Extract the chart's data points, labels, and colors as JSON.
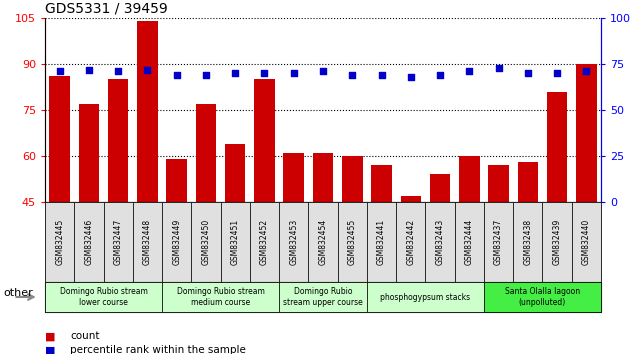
{
  "title": "GDS5331 / 39459",
  "samples": [
    "GSM832445",
    "GSM832446",
    "GSM832447",
    "GSM832448",
    "GSM832449",
    "GSM832450",
    "GSM832451",
    "GSM832452",
    "GSM832453",
    "GSM832454",
    "GSM832455",
    "GSM832441",
    "GSM832442",
    "GSM832443",
    "GSM832444",
    "GSM832437",
    "GSM832438",
    "GSM832439",
    "GSM832440"
  ],
  "counts": [
    86,
    77,
    85,
    104,
    59,
    77,
    64,
    85,
    61,
    61,
    60,
    57,
    47,
    54,
    60,
    57,
    58,
    81,
    90
  ],
  "percentiles": [
    71,
    72,
    71,
    72,
    69,
    69,
    70,
    70,
    70,
    71,
    69,
    69,
    68,
    69,
    71,
    73,
    70,
    70,
    71
  ],
  "bar_color": "#cc0000",
  "dot_color": "#0000cc",
  "ylim_left": [
    45,
    105
  ],
  "ylim_right": [
    0,
    100
  ],
  "yticks_left": [
    45,
    60,
    75,
    90,
    105
  ],
  "yticks_right": [
    0,
    25,
    50,
    75,
    100
  ],
  "groups": [
    {
      "label": "Domingo Rubio stream\nlower course",
      "start": 0,
      "end": 4,
      "color": "#ccffcc"
    },
    {
      "label": "Domingo Rubio stream\nmedium course",
      "start": 4,
      "end": 8,
      "color": "#ccffcc"
    },
    {
      "label": "Domingo Rubio\nstream upper course",
      "start": 8,
      "end": 11,
      "color": "#ccffcc"
    },
    {
      "label": "phosphogypsum stacks",
      "start": 11,
      "end": 15,
      "color": "#ccffcc"
    },
    {
      "label": "Santa Olalla lagoon\n(unpolluted)",
      "start": 15,
      "end": 19,
      "color": "#44ee44"
    }
  ],
  "other_label": "other"
}
